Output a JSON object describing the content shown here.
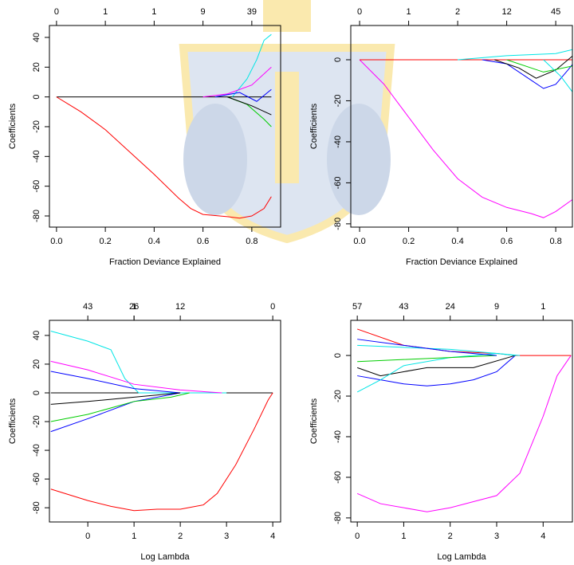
{
  "chart_data": [
    {
      "type": "line",
      "xlabel": "Fraction Deviance Explained",
      "ylabel": "Coefficients",
      "xlim": [
        -0.029,
        0.918
      ],
      "ylim": [
        -87.5,
        48
      ],
      "xticks": [
        {
          "value": 0,
          "label": "0.0"
        },
        0.2,
        0.4,
        0.6,
        0.8
      ],
      "x2ticks": [
        0,
        {
          "value": 0.2,
          "label": "1"
        },
        {
          "value": 0.4,
          "label": "1"
        },
        {
          "value": 0.6,
          "label": "9"
        },
        {
          "value": 0.8,
          "label": "39"
        }
      ],
      "yticks": [
        -80,
        -60,
        -40,
        -20,
        0,
        20,
        40
      ],
      "series": [
        {
          "color": "#000000",
          "x": [
            0,
            0.88
          ],
          "values": [
            0,
            0
          ]
        },
        {
          "color": "#ff0000",
          "x": [
            0,
            0.1,
            0.2,
            0.3,
            0.4,
            0.5,
            0.55,
            0.6,
            0.7,
            0.75,
            0.8,
            0.85,
            0.88
          ],
          "values": [
            0,
            -10,
            -22,
            -37,
            -52,
            -68,
            -75,
            -79,
            -80.5,
            -81.5,
            -80,
            -75,
            -67
          ]
        },
        {
          "color": "#00e5e5",
          "x": [
            0.72,
            0.78,
            0.82,
            0.85,
            0.88
          ],
          "values": [
            0,
            12,
            25,
            38,
            42
          ]
        },
        {
          "color": "#ff00ff",
          "x": [
            0.6,
            0.7,
            0.8,
            0.88
          ],
          "values": [
            0,
            2,
            8,
            20
          ]
        },
        {
          "color": "#00cd00",
          "x": [
            0.7,
            0.78,
            0.85,
            0.88
          ],
          "values": [
            0,
            -5,
            -15,
            -20
          ]
        },
        {
          "color": "#0000ff",
          "x": [
            0.65,
            0.75,
            0.82,
            0.88
          ],
          "values": [
            0,
            3,
            -3,
            5
          ]
        },
        {
          "color": "#000000",
          "x": [
            0.7,
            0.8,
            0.88
          ],
          "values": [
            0,
            -6,
            -12
          ]
        }
      ]
    },
    {
      "type": "line",
      "xlabel": "Fraction Deviance Explained",
      "ylabel": "Coefficients",
      "xlim": [
        -0.036,
        0.868
      ],
      "ylim": [
        -81.6,
        16.7
      ],
      "xticks": [
        {
          "value": 0,
          "label": "0.0"
        },
        0.2,
        0.4,
        0.6,
        0.8
      ],
      "x2ticks": [
        0,
        {
          "value": 0.2,
          "label": "1"
        },
        {
          "value": 0.4,
          "label": "2"
        },
        {
          "value": 0.6,
          "label": "12"
        },
        {
          "value": 0.8,
          "label": "45"
        }
      ],
      "yticks": [
        -80,
        -60,
        -40,
        -20,
        0
      ],
      "series": [
        {
          "color": "#ff00ff",
          "x": [
            0,
            0.1,
            0.2,
            0.3,
            0.4,
            0.5,
            0.6,
            0.7,
            0.75,
            0.8,
            0.87
          ],
          "values": [
            0,
            -12,
            -28,
            -44,
            -58,
            -67,
            -72,
            -75,
            -77,
            -74,
            -68
          ]
        },
        {
          "color": "#ff0000",
          "x": [
            0,
            0.87
          ],
          "values": [
            0,
            0
          ]
        },
        {
          "color": "#0000ff",
          "x": [
            0.5,
            0.6,
            0.7,
            0.75,
            0.8,
            0.85,
            0.87
          ],
          "values": [
            0,
            -2,
            -10,
            -14,
            -12,
            -5,
            -2
          ]
        },
        {
          "color": "#000000",
          "x": [
            0.55,
            0.65,
            0.72,
            0.8,
            0.87
          ],
          "values": [
            0,
            -4,
            -9,
            -5,
            2
          ]
        },
        {
          "color": "#00e5e5",
          "x": [
            0.4,
            0.6,
            0.8,
            0.87
          ],
          "values": [
            0,
            2,
            3,
            5
          ]
        },
        {
          "color": "#00cd00",
          "x": [
            0.6,
            0.75,
            0.87
          ],
          "values": [
            0,
            -6,
            -3
          ]
        },
        {
          "color": "#00e5e5",
          "x": [
            0.75,
            0.82,
            0.87
          ],
          "values": [
            0,
            -8,
            -16
          ]
        }
      ]
    },
    {
      "type": "line",
      "xlabel": "Log Lambda",
      "ylabel": "Coefficients",
      "xlim": [
        -0.83,
        4.17
      ],
      "ylim": [
        -89.9,
        50.5
      ],
      "xticks": [
        0,
        1,
        2,
        3,
        4
      ],
      "x2ticks": [
        {
          "value": 0,
          "label": "43"
        },
        {
          "value": 1,
          "label": "26"
        },
        {
          "value": 2,
          "label": "12"
        },
        1,
        {
          "value": 4,
          "label": "0"
        }
      ],
      "yticks": [
        -80,
        -60,
        -40,
        -20,
        0,
        20,
        40
      ],
      "series": [
        {
          "color": "#000000",
          "x": [
            -0.8,
            4
          ],
          "values": [
            0,
            0
          ]
        },
        {
          "color": "#ff0000",
          "x": [
            -0.8,
            0,
            0.5,
            1,
            1.5,
            2,
            2.5,
            2.8,
            3.2,
            3.6,
            3.9,
            4
          ],
          "values": [
            -67,
            -75,
            -79,
            -82,
            -81,
            -81,
            -78,
            -70,
            -50,
            -25,
            -5,
            0
          ]
        },
        {
          "color": "#00e5e5",
          "x": [
            -0.8,
            0,
            0.5,
            0.8,
            1.1,
            3
          ],
          "values": [
            43,
            36,
            30,
            10,
            0,
            0
          ]
        },
        {
          "color": "#ff00ff",
          "x": [
            -0.8,
            0,
            1,
            2,
            2.9
          ],
          "values": [
            22,
            16,
            6,
            2,
            0
          ]
        },
        {
          "color": "#0000ff",
          "x": [
            -0.8,
            0,
            1,
            2
          ],
          "values": [
            15,
            10,
            3,
            0
          ]
        },
        {
          "color": "#0000ff",
          "x": [
            -0.8,
            0,
            1,
            2
          ],
          "values": [
            -27,
            -18,
            -6,
            0
          ]
        },
        {
          "color": "#00cd00",
          "x": [
            -0.8,
            0,
            1,
            1.8,
            2.2
          ],
          "values": [
            -20,
            -15,
            -6,
            -3,
            0
          ]
        },
        {
          "color": "#000000",
          "x": [
            -0.8,
            0,
            1,
            2
          ],
          "values": [
            -8,
            -6,
            -3,
            0
          ]
        }
      ]
    },
    {
      "type": "line",
      "xlabel": "Log Lambda",
      "ylabel": "Coefficients",
      "xlim": [
        -0.14,
        4.63
      ],
      "ylim": [
        -82,
        17.3
      ],
      "xticks": [
        0,
        1,
        2,
        3,
        4
      ],
      "x2ticks": [
        {
          "value": 0,
          "label": "57"
        },
        {
          "value": 1,
          "label": "43"
        },
        {
          "value": 2,
          "label": "24"
        },
        {
          "value": 3,
          "label": "9"
        },
        {
          "value": 4,
          "label": "1"
        }
      ],
      "yticks": [
        -80,
        -60,
        -40,
        -20,
        0
      ],
      "series": [
        {
          "color": "#ff00ff",
          "x": [
            0,
            0.5,
            1,
            1.5,
            2,
            2.5,
            3,
            3.5,
            4,
            4.3,
            4.6
          ],
          "values": [
            -68,
            -73,
            -75,
            -77,
            -75,
            -72,
            -69,
            -58,
            -30,
            -10,
            0
          ]
        },
        {
          "color": "#ff0000",
          "x": [
            0,
            1,
            2,
            3,
            3.4,
            4.6
          ],
          "values": [
            13,
            5,
            2,
            1,
            0,
            0
          ]
        },
        {
          "color": "#0000ff",
          "x": [
            0,
            0.5,
            1,
            1.5,
            2,
            2.5,
            3,
            3.4
          ],
          "values": [
            -10,
            -12,
            -14,
            -15,
            -14,
            -12,
            -8,
            0
          ]
        },
        {
          "color": "#000000",
          "x": [
            0,
            0.5,
            1,
            1.5,
            2,
            2.5,
            3.4
          ],
          "values": [
            -6,
            -10,
            -8,
            -6,
            -6,
            -6,
            0
          ]
        },
        {
          "color": "#00e5e5",
          "x": [
            0,
            0.5,
            1,
            2,
            3,
            3.5
          ],
          "values": [
            -18,
            -12,
            -5,
            -1,
            1,
            0
          ]
        },
        {
          "color": "#00e5e5",
          "x": [
            0,
            1,
            2,
            3,
            3.4
          ],
          "values": [
            5,
            4,
            3,
            1,
            0
          ]
        },
        {
          "color": "#00cd00",
          "x": [
            0,
            1,
            2,
            3
          ],
          "values": [
            -3,
            -2,
            -1,
            0
          ]
        },
        {
          "color": "#0000ff",
          "x": [
            0,
            1,
            2,
            3
          ],
          "values": [
            8,
            5,
            2,
            0
          ]
        }
      ]
    }
  ]
}
